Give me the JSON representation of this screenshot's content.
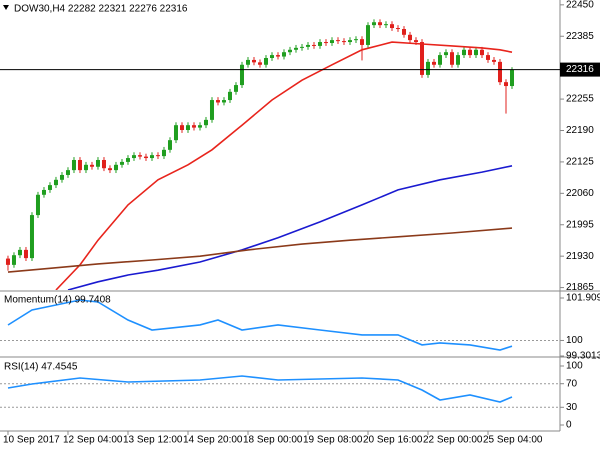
{
  "chart_data": [
    {
      "type": "candlestick",
      "title": "DOW30,H4  22282 22321 22276 22316",
      "open": [
        21925,
        21912,
        21932,
        21943,
        21926,
        22015,
        22057,
        22067,
        22077,
        22088,
        22098,
        22108,
        22129,
        22108,
        22119,
        22115,
        22129,
        22112,
        22108,
        22119,
        22125,
        22133,
        22139,
        22136,
        22133,
        22139,
        22137,
        22150,
        22170,
        22201,
        22191,
        22201,
        22196,
        22201,
        22212,
        22253,
        22248,
        22253,
        22270,
        22284,
        22326,
        22336,
        22331,
        22326,
        22340,
        22346,
        22343,
        22352,
        22357,
        22361,
        22363,
        22367,
        22365,
        22373,
        22371,
        22377,
        22375,
        22373,
        22377,
        22379,
        22367,
        22408,
        22414,
        22408,
        22410,
        22402,
        22400,
        22388,
        22377,
        22373,
        22305,
        22332,
        22326,
        22346,
        22352,
        22326,
        22346,
        22357,
        22346,
        22357,
        22346,
        22336,
        22332,
        22290,
        22282
      ],
      "high": [
        21931,
        21938,
        21949,
        21949,
        22021,
        22063,
        22073,
        22083,
        22094,
        22104,
        22114,
        22135,
        22135,
        22125,
        22125,
        22135,
        22135,
        22118,
        22125,
        22131,
        22139,
        22145,
        22145,
        22142,
        22145,
        22145,
        22156,
        22176,
        22207,
        22207,
        22207,
        22207,
        22207,
        22218,
        22259,
        22259,
        22259,
        22276,
        22290,
        22332,
        22342,
        22342,
        22337,
        22346,
        22352,
        22352,
        22358,
        22363,
        22367,
        22369,
        22373,
        22373,
        22379,
        22379,
        22383,
        22383,
        22381,
        22383,
        22385,
        22385,
        22414,
        22420,
        22420,
        22416,
        22416,
        22408,
        22406,
        22394,
        22383,
        22379,
        22338,
        22338,
        22352,
        22358,
        22358,
        22352,
        22363,
        22363,
        22363,
        22363,
        22352,
        22342,
        22338,
        22296,
        22321
      ],
      "low": [
        21900,
        21906,
        21926,
        21920,
        21920,
        22009,
        22051,
        22061,
        22071,
        22082,
        22092,
        22102,
        22102,
        22102,
        22109,
        22109,
        22106,
        22102,
        22102,
        22113,
        22119,
        22127,
        22130,
        22127,
        22127,
        22131,
        22131,
        22144,
        22164,
        22185,
        22185,
        22190,
        22190,
        22195,
        22206,
        22242,
        22242,
        22247,
        22264,
        22278,
        22320,
        22325,
        22320,
        22320,
        22334,
        22337,
        22337,
        22346,
        22351,
        22355,
        22357,
        22359,
        22359,
        22365,
        22365,
        22369,
        22367,
        22367,
        22371,
        22335,
        22361,
        22402,
        22402,
        22402,
        22396,
        22394,
        22382,
        22371,
        22367,
        22299,
        22299,
        22320,
        22320,
        22340,
        22320,
        22320,
        22340,
        22340,
        22340,
        22340,
        22330,
        22326,
        22284,
        22225,
        22276
      ],
      "close": [
        21912,
        21932,
        21943,
        21926,
        22015,
        22057,
        22067,
        22077,
        22088,
        22098,
        22108,
        22129,
        22108,
        22119,
        22115,
        22129,
        22112,
        22108,
        22119,
        22125,
        22133,
        22139,
        22136,
        22133,
        22139,
        22137,
        22150,
        22170,
        22201,
        22191,
        22201,
        22196,
        22201,
        22212,
        22253,
        22248,
        22253,
        22270,
        22284,
        22326,
        22336,
        22331,
        22326,
        22340,
        22346,
        22343,
        22352,
        22357,
        22361,
        22363,
        22367,
        22365,
        22373,
        22371,
        22377,
        22375,
        22373,
        22377,
        22379,
        22367,
        22408,
        22414,
        22408,
        22410,
        22402,
        22400,
        22388,
        22377,
        22373,
        22305,
        22332,
        22326,
        22346,
        22352,
        22326,
        22346,
        22357,
        22346,
        22357,
        22346,
        22336,
        22332,
        22290,
        22282,
        22316
      ],
      "up_color": "#1f9e1f",
      "down_color": "#e0201c",
      "ylim": [
        21860,
        22460
      ],
      "yticks": [
        22450,
        22385,
        22255,
        22190,
        22125,
        22060,
        21995,
        21930,
        21865
      ],
      "current_price": 22316,
      "xlim": [
        -1.33,
        92
      ],
      "xticks": [
        {
          "value": 0,
          "label": "10 Sep 2017"
        },
        {
          "value": 10,
          "label": "12 Sep 04:00"
        },
        {
          "value": 20,
          "label": "13 Sep 12:00"
        },
        {
          "value": 30,
          "label": "14 Sep 20:00"
        },
        {
          "value": 40,
          "label": "18 Sep 00:00"
        },
        {
          "value": 50,
          "label": "19 Sep 08:00"
        },
        {
          "value": 60,
          "label": "20 Sep 16:00"
        },
        {
          "value": 70,
          "label": "22 Sep 00:00"
        },
        {
          "value": 80,
          "label": "25 Sep 04:00"
        }
      ],
      "series": [
        {
          "color": "#e8241c",
          "x": [
            8,
            12,
            15,
            20,
            25,
            30,
            34,
            39,
            44,
            49,
            54,
            59,
            64,
            69,
            74,
            79,
            82,
            84
          ],
          "values": [
            21860,
            21912,
            21963,
            22036,
            22088,
            22119,
            22150,
            22201,
            22253,
            22294,
            22326,
            22357,
            22373,
            22369,
            22365,
            22361,
            22357,
            22352
          ]
        },
        {
          "color": "#1a1ad0",
          "x": [
            10,
            15,
            20,
            25,
            32,
            39,
            45,
            52,
            59,
            65,
            72,
            79,
            84
          ],
          "values": [
            21860,
            21877,
            21891,
            21901,
            21918,
            21943,
            21968,
            22001,
            22036,
            22067,
            22088,
            22104,
            22117
          ]
        },
        {
          "color": "#8b3a1a",
          "x": [
            0,
            7,
            15,
            24,
            32,
            40,
            49,
            57,
            65,
            74,
            84
          ],
          "values": [
            21897,
            21905,
            21914,
            21922,
            21930,
            21943,
            21955,
            21963,
            21970,
            21978,
            21988
          ]
        }
      ]
    },
    {
      "type": "line",
      "title": "Momentum(14) 99.7408",
      "ylim": [
        99.3013,
        102.09
      ],
      "yticks": [
        101.9099,
        100,
        99.3013
      ],
      "levels": [
        100
      ],
      "series": [
        {
          "color": "#1e90ff",
          "x": [
            0,
            4,
            8,
            12,
            15,
            20,
            24,
            32,
            35,
            39,
            45,
            52,
            59,
            65,
            69,
            72,
            77,
            82,
            84
          ],
          "values": [
            100.696,
            101.37,
            101.595,
            101.82,
            101.73,
            100.92,
            100.47,
            100.7,
            100.92,
            100.47,
            100.7,
            100.47,
            100.25,
            100.25,
            99.8,
            99.89,
            99.8,
            99.57,
            99.7408
          ]
        }
      ]
    },
    {
      "type": "line",
      "title": "RSI(14) 47.4545",
      "ylim": [
        0,
        100
      ],
      "yticks": [
        100,
        70,
        30,
        0
      ],
      "levels": [
        70,
        30
      ],
      "series": [
        {
          "color": "#1e90ff",
          "x": [
            0,
            4,
            12,
            20,
            32,
            39,
            45,
            59,
            65,
            69,
            72,
            77,
            82,
            84
          ],
          "values": [
            62.7,
            69.5,
            79.7,
            72.9,
            76.3,
            83,
            76.3,
            79.7,
            76.3,
            59.3,
            42.4,
            50.8,
            39,
            47.4545
          ]
        }
      ]
    }
  ]
}
